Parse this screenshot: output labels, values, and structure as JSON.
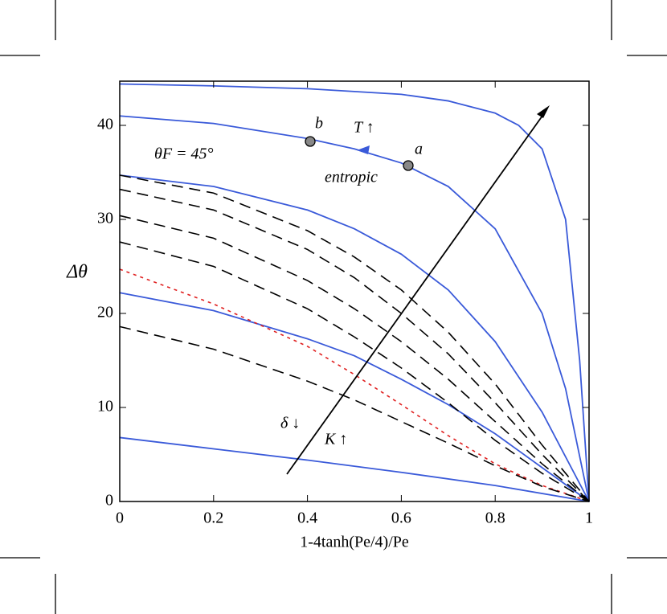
{
  "chart_data": {
    "type": "line",
    "x_label": "1-4tanh(Pe/4)/Pe",
    "y_label": "Δθ",
    "xlim": [
      0,
      1
    ],
    "ylim": [
      0,
      44.7
    ],
    "xticks": [
      0,
      0.2,
      0.4,
      0.6,
      0.8,
      1
    ],
    "yticks": [
      0,
      10,
      20,
      30,
      40
    ],
    "annotations": [
      "T ↑",
      "b",
      "a",
      "θF = 45°",
      "entropic",
      "δ ↓",
      "K ↑"
    ],
    "series": [
      {
        "color": "#3a5ad9",
        "style": "solid",
        "x": [
          0,
          0.2,
          0.4,
          0.6,
          0.7,
          0.8,
          0.85,
          0.9,
          0.95,
          0.98,
          1
        ],
        "values": [
          44.4,
          44.2,
          43.9,
          43.3,
          42.6,
          41.3,
          40,
          37.5,
          30,
          15,
          0
        ]
      },
      {
        "color": "#3a5ad9",
        "style": "solid",
        "x": [
          0,
          0.2,
          0.4,
          0.5,
          0.6,
          0.7,
          0.8,
          0.9,
          0.95,
          1
        ],
        "values": [
          41,
          40.2,
          38.6,
          37.5,
          36,
          33.5,
          29,
          20,
          12,
          0
        ]
      },
      {
        "color": "#3a5ad9",
        "style": "solid",
        "x": [
          0,
          0.2,
          0.4,
          0.5,
          0.6,
          0.7,
          0.8,
          0.9,
          1
        ],
        "values": [
          34.7,
          33.5,
          31,
          29,
          26.3,
          22.5,
          17,
          9.5,
          0
        ]
      },
      {
        "color": "#3a5ad9",
        "style": "solid",
        "x": [
          0,
          0.2,
          0.4,
          0.5,
          0.6,
          0.7,
          0.8,
          0.9,
          1
        ],
        "values": [
          22.2,
          20.3,
          17.3,
          15.5,
          13,
          10.3,
          7.2,
          3.6,
          0
        ]
      },
      {
        "color": "#3a5ad9",
        "style": "solid",
        "x": [
          0,
          0.2,
          0.4,
          0.6,
          0.8,
          1
        ],
        "values": [
          6.8,
          5.6,
          4.4,
          3.1,
          1.7,
          0
        ]
      },
      {
        "color": "#e02020",
        "style": "dotted",
        "x": [
          0,
          0.2,
          0.4,
          0.5,
          0.6,
          0.7,
          0.8,
          0.9,
          1
        ],
        "values": [
          24.7,
          21,
          16.5,
          13.5,
          10.3,
          7,
          4,
          1.7,
          0
        ]
      },
      {
        "color": "#000000",
        "style": "dashed",
        "x": [
          0,
          0.2,
          0.4,
          0.5,
          0.6,
          0.7,
          0.8,
          0.9,
          1
        ],
        "values": [
          34.7,
          32.8,
          28.8,
          26,
          22.5,
          18,
          12.5,
          6,
          0
        ]
      },
      {
        "color": "#000000",
        "style": "dashed",
        "x": [
          0,
          0.2,
          0.4,
          0.5,
          0.6,
          0.7,
          0.8,
          0.9,
          1
        ],
        "values": [
          33.2,
          31,
          26.8,
          23.8,
          20,
          15.7,
          10.5,
          5,
          0
        ]
      },
      {
        "color": "#000000",
        "style": "dashed",
        "x": [
          0,
          0.2,
          0.4,
          0.5,
          0.6,
          0.7,
          0.8,
          0.9,
          1
        ],
        "values": [
          30.4,
          28,
          23.5,
          20.5,
          17,
          13,
          8.5,
          4,
          0
        ]
      },
      {
        "color": "#000000",
        "style": "dashed",
        "x": [
          0,
          0.2,
          0.4,
          0.5,
          0.6,
          0.7,
          0.8,
          0.9,
          1
        ],
        "values": [
          27.6,
          25,
          20.5,
          17.5,
          14.2,
          10.5,
          6.5,
          3,
          0
        ]
      },
      {
        "color": "#000000",
        "style": "dashed",
        "x": [
          0,
          0.2,
          0.4,
          0.5,
          0.6,
          0.7,
          0.8,
          0.9,
          1
        ],
        "values": [
          18.6,
          16.2,
          12.8,
          10.8,
          8.5,
          6.2,
          3.8,
          1.6,
          0
        ]
      }
    ]
  }
}
